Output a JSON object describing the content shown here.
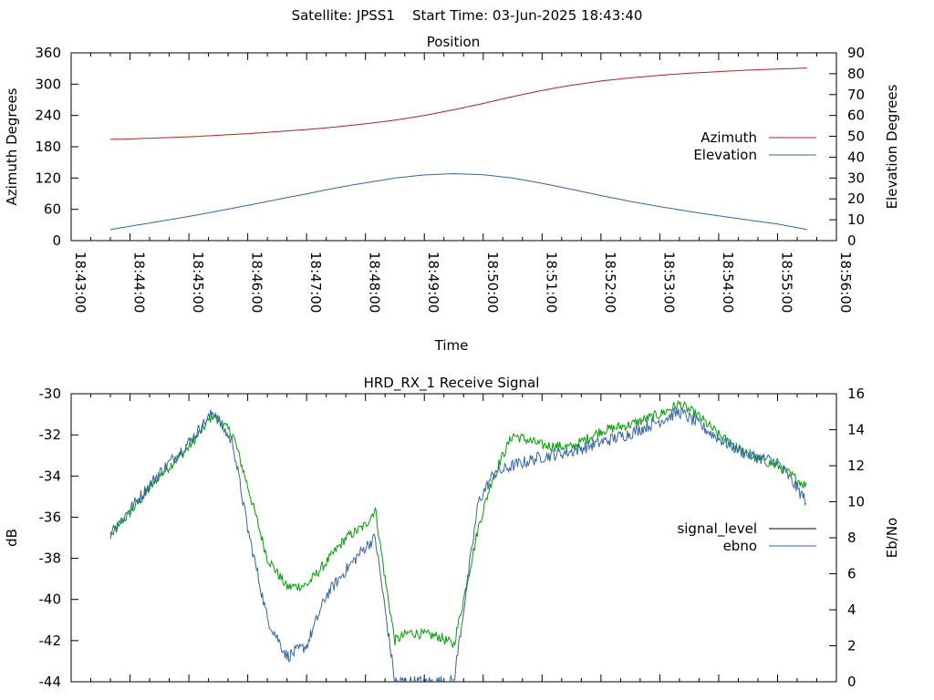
{
  "page_title": "Satellite: JPSS1    Start Time: 03-Jun-2025 18:43:40",
  "chart_data": [
    {
      "type": "line",
      "title": "Position",
      "xlabel": "Time",
      "ylabel_left": "Azimuth Degrees",
      "ylabel_right": "Elevation Degrees",
      "x_ticks": [
        "18:43:00",
        "18:44:00",
        "18:45:00",
        "18:46:00",
        "18:47:00",
        "18:48:00",
        "18:49:00",
        "18:50:00",
        "18:51:00",
        "18:52:00",
        "18:53:00",
        "18:54:00",
        "18:55:00",
        "18:56:00"
      ],
      "x_range_minutes": [
        0,
        13
      ],
      "ylim_left": [
        0,
        360
      ],
      "ylim_right": [
        0,
        90
      ],
      "yticks_left": [
        0,
        60,
        120,
        180,
        240,
        300,
        360
      ],
      "yticks_right": [
        0,
        10,
        20,
        30,
        40,
        50,
        60,
        70,
        80,
        90
      ],
      "grid": false,
      "legend_position": "right",
      "series": [
        {
          "name": "Azimuth",
          "axis": "left",
          "color": "#b22222",
          "x": [
            "18:43:40",
            "18:44:00",
            "18:44:30",
            "18:45:00",
            "18:45:30",
            "18:46:00",
            "18:46:30",
            "18:47:00",
            "18:47:30",
            "18:48:00",
            "18:48:30",
            "18:49:00",
            "18:49:30",
            "18:50:00",
            "18:50:30",
            "18:51:00",
            "18:51:30",
            "18:52:00",
            "18:52:30",
            "18:53:00",
            "18:53:30",
            "18:54:00",
            "18:54:30",
            "18:55:00",
            "18:55:30"
          ],
          "y": [
            194,
            195,
            197,
            199,
            202,
            205,
            209,
            213,
            218,
            224,
            231,
            240,
            251,
            263,
            276,
            288,
            298,
            306,
            312,
            317,
            321,
            324,
            327,
            329,
            331
          ]
        },
        {
          "name": "Elevation",
          "axis": "right",
          "color": "#3465a4",
          "x": [
            "18:43:40",
            "18:44:00",
            "18:44:30",
            "18:45:00",
            "18:45:30",
            "18:46:00",
            "18:46:30",
            "18:47:00",
            "18:47:30",
            "18:48:00",
            "18:48:30",
            "18:49:00",
            "18:49:30",
            "18:50:00",
            "18:50:30",
            "18:51:00",
            "18:51:30",
            "18:52:00",
            "18:52:30",
            "18:53:00",
            "18:53:30",
            "18:54:00",
            "18:54:30",
            "18:55:00",
            "18:55:30"
          ],
          "y": [
            5.3,
            6.9,
            9.2,
            11.6,
            14.2,
            16.9,
            19.7,
            22.4,
            25.3,
            27.7,
            30.0,
            31.5,
            32.1,
            31.6,
            30.0,
            27.5,
            24.6,
            21.6,
            18.8,
            16.3,
            14.0,
            11.9,
            9.9,
            8.0,
            5.3
          ]
        }
      ]
    },
    {
      "type": "line",
      "title": "HRD_RX_1 Receive Signal",
      "ylabel_left": "dB",
      "ylabel_right": "Eb/No",
      "x_range_minutes": [
        0,
        13
      ],
      "ylim_left": [
        -44,
        -30
      ],
      "ylim_right": [
        0,
        16
      ],
      "yticks_left": [
        -30,
        -32,
        -34,
        -36,
        -38,
        -40,
        -42,
        -44
      ],
      "yticks_right": [
        0,
        2,
        4,
        6,
        8,
        10,
        12,
        14,
        16
      ],
      "grid": false,
      "legend_position": "right",
      "series": [
        {
          "name": "signal_level",
          "axis": "left",
          "color": "#000000",
          "x": [
            "18:43:40",
            "18:44:00",
            "18:44:30",
            "18:45:00",
            "18:45:25",
            "18:45:45",
            "18:46:00",
            "18:46:20",
            "18:46:40",
            "18:47:00",
            "18:47:20",
            "18:47:40",
            "18:48:00",
            "18:48:10",
            "18:48:20",
            "18:48:30",
            "18:48:45",
            "18:49:00",
            "18:49:15",
            "18:49:30",
            "18:49:40",
            "18:49:55",
            "18:50:10",
            "18:50:30",
            "18:51:00",
            "18:51:30",
            "18:52:00",
            "18:52:30",
            "18:53:00",
            "18:53:20",
            "18:53:40",
            "18:54:00",
            "18:54:30",
            "18:55:00",
            "18:55:30"
          ],
          "y": [
            -36.8,
            -35.8,
            -34.0,
            -32.6,
            -31.0,
            -32.0,
            -34.5,
            -38.0,
            -39.4,
            -39.3,
            -38.2,
            -37.0,
            -36.4,
            -35.6,
            -39.0,
            -42.0,
            -41.6,
            -41.7,
            -41.8,
            -42.2,
            -40.0,
            -36.5,
            -34.0,
            -32.0,
            -32.5,
            -32.6,
            -31.8,
            -31.5,
            -31.0,
            -30.5,
            -31.1,
            -32.0,
            -33.0,
            -33.5,
            -34.5
          ]
        },
        {
          "name": "ebno",
          "axis": "right",
          "color": "#3465a4",
          "x": [
            "18:43:40",
            "18:44:00",
            "18:44:30",
            "18:45:00",
            "18:45:25",
            "18:45:45",
            "18:46:00",
            "18:46:20",
            "18:46:40",
            "18:47:00",
            "18:47:20",
            "18:47:40",
            "18:48:00",
            "18:48:10",
            "18:48:20",
            "18:48:30",
            "18:49:00",
            "18:49:30",
            "18:49:40",
            "18:49:55",
            "18:50:10",
            "18:50:30",
            "18:51:00",
            "18:51:30",
            "18:52:00",
            "18:52:30",
            "18:53:00",
            "18:53:20",
            "18:53:40",
            "18:54:00",
            "18:54:30",
            "18:55:00",
            "18:55:30"
          ],
          "y": [
            8.2,
            9.6,
            11.6,
            13.3,
            15.0,
            13.2,
            8.5,
            3.5,
            1.4,
            2.0,
            4.8,
            6.2,
            7.5,
            8.0,
            4.0,
            0.0,
            0.0,
            0.0,
            4.0,
            10.0,
            11.5,
            12.0,
            12.5,
            12.8,
            13.3,
            13.8,
            14.5,
            15.0,
            14.3,
            13.5,
            12.6,
            12.2,
            10.0
          ]
        }
      ]
    }
  ]
}
